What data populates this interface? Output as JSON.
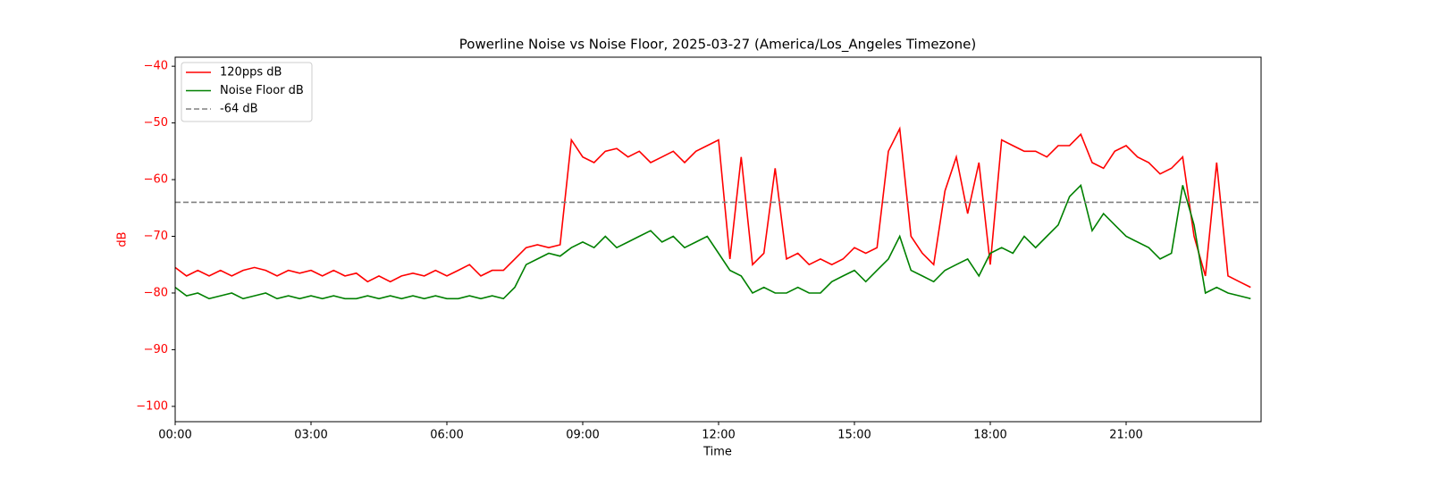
{
  "chart_data": {
    "type": "line",
    "title": "Powerline Noise vs Noise Floor, 2025-03-27 (America/Los_Angeles Timezone)",
    "x_label": "Time",
    "y_label": "dB",
    "y_label_color": "#ff0000",
    "x": [
      0,
      0.25,
      0.5,
      0.75,
      1,
      1.25,
      1.5,
      1.75,
      2,
      2.25,
      2.5,
      2.75,
      3,
      3.25,
      3.5,
      3.75,
      4,
      4.25,
      4.5,
      4.75,
      5,
      5.25,
      5.5,
      5.75,
      6,
      6.25,
      6.5,
      6.75,
      7,
      7.25,
      7.5,
      7.75,
      8,
      8.25,
      8.5,
      8.75,
      9,
      9.25,
      9.5,
      9.75,
      10,
      10.25,
      10.5,
      10.75,
      11,
      11.25,
      11.5,
      11.75,
      12,
      12.25,
      12.5,
      12.75,
      13,
      13.25,
      13.5,
      13.75,
      14,
      14.25,
      14.5,
      14.75,
      15,
      15.25,
      15.5,
      15.75,
      16,
      16.25,
      16.5,
      16.75,
      17,
      17.25,
      17.5,
      17.75,
      18,
      18.25,
      18.5,
      18.75,
      19,
      19.25,
      19.5,
      19.75,
      20,
      20.25,
      20.5,
      20.75,
      21,
      21.25,
      21.5,
      21.75,
      22,
      22.25,
      22.5,
      22.75,
      23,
      23.25,
      23.5,
      23.75
    ],
    "series": [
      {
        "name": "120pps dB",
        "color": "#ff0000",
        "values": [
          -75.5,
          -77,
          -76,
          -77,
          -76,
          -77,
          -76,
          -75.5,
          -76,
          -77,
          -76,
          -76.5,
          -76,
          -77,
          -76,
          -77,
          -76.5,
          -78,
          -77,
          -78,
          -77,
          -76.5,
          -77,
          -76,
          -77,
          -76,
          -75,
          -77,
          -76,
          -76,
          -74,
          -72,
          -71.5,
          -72,
          -71.5,
          -53,
          -56,
          -57,
          -55,
          -54.5,
          -56,
          -55,
          -57,
          -56,
          -55,
          -57,
          -55,
          -54,
          -53,
          -74,
          -56,
          -75,
          -73,
          -58,
          -74,
          -73,
          -75,
          -74,
          -75,
          -74,
          -72,
          -73,
          -72,
          -55,
          -51,
          -70,
          -73,
          -75,
          -62,
          -56,
          -66,
          -57,
          -75,
          -53,
          -54,
          -55,
          -55,
          -56,
          -54,
          -54,
          -52,
          -57,
          -58,
          -55,
          -54,
          -56,
          -57,
          -59,
          -58,
          -56,
          -70,
          -77,
          -57,
          -77,
          -78,
          -79
        ]
      },
      {
        "name": "Noise Floor dB",
        "color": "#008000",
        "values": [
          -79,
          -80.5,
          -80,
          -81,
          -80.5,
          -80,
          -81,
          -80.5,
          -80,
          -81,
          -80.5,
          -81,
          -80.5,
          -81,
          -80.5,
          -81,
          -81,
          -80.5,
          -81,
          -80.5,
          -81,
          -80.5,
          -81,
          -80.5,
          -81,
          -81,
          -80.5,
          -81,
          -80.5,
          -81,
          -79,
          -75,
          -74,
          -73,
          -73.5,
          -72,
          -71,
          -72,
          -70,
          -72,
          -71,
          -70,
          -69,
          -71,
          -70,
          -72,
          -71,
          -70,
          -73,
          -76,
          -77,
          -80,
          -79,
          -80,
          -80,
          -79,
          -80,
          -80,
          -78,
          -77,
          -76,
          -78,
          -76,
          -74,
          -70,
          -76,
          -77,
          -78,
          -76,
          -75,
          -74,
          -77,
          -73,
          -72,
          -73,
          -70,
          -72,
          -70,
          -68,
          -63,
          -61,
          -69,
          -66,
          -68,
          -70,
          -71,
          -72,
          -74,
          -73,
          -61,
          -68,
          -80,
          -79,
          -80,
          -80.5,
          -81
        ]
      }
    ],
    "hline": {
      "name": "-64 dB",
      "value": -64,
      "color": "#808080"
    },
    "xlim": [
      0,
      23.98
    ],
    "ylim": [
      -102.7,
      -38.4
    ],
    "xticks": [
      {
        "value": 0,
        "label": "00:00"
      },
      {
        "value": 3,
        "label": "03:00"
      },
      {
        "value": 6,
        "label": "06:00"
      },
      {
        "value": 9,
        "label": "09:00"
      },
      {
        "value": 12,
        "label": "12:00"
      },
      {
        "value": 15,
        "label": "15:00"
      },
      {
        "value": 18,
        "label": "18:00"
      },
      {
        "value": 21,
        "label": "21:00"
      }
    ],
    "yticks": [
      {
        "value": -40,
        "label": "−40"
      },
      {
        "value": -50,
        "label": "−50"
      },
      {
        "value": -60,
        "label": "−60"
      },
      {
        "value": -70,
        "label": "−70"
      },
      {
        "value": -80,
        "label": "−80"
      },
      {
        "value": -90,
        "label": "−90"
      },
      {
        "value": -100,
        "label": "−100"
      }
    ],
    "ytick_color": "#ff0000",
    "legend": "upper left"
  }
}
